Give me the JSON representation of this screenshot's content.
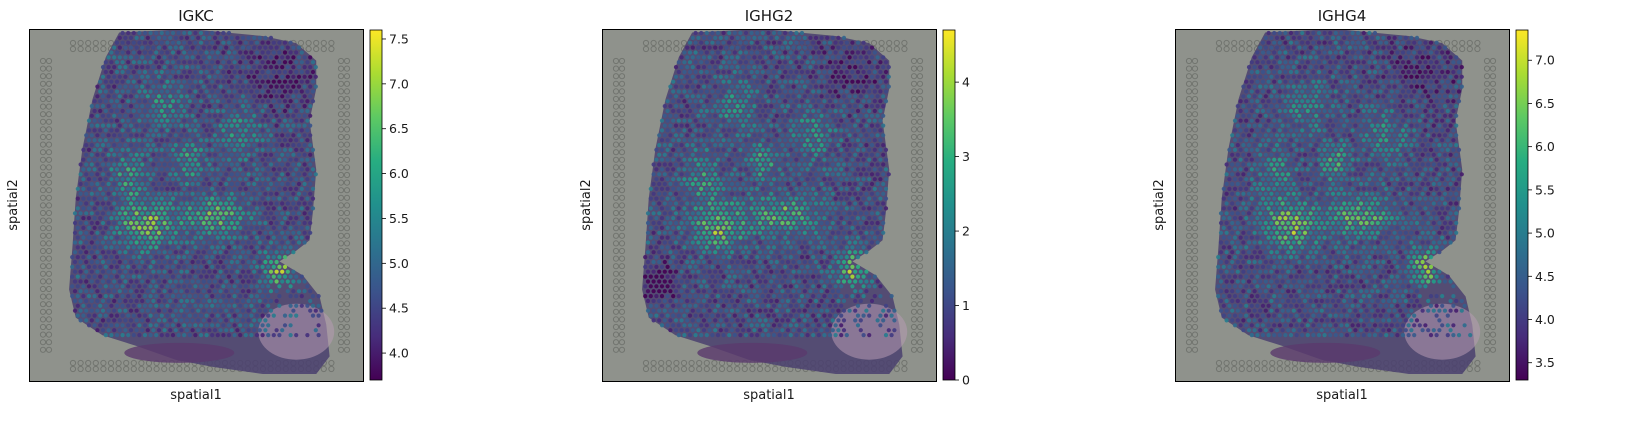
{
  "chart_data": [
    {
      "type": "heatmap",
      "title": "IGKC",
      "xlabel": "spatial1",
      "ylabel": "spatial2",
      "colormap": "viridis",
      "colorbar_range": [
        3.7,
        7.6
      ],
      "colorbar_ticks": [
        "4.0",
        "4.5",
        "5.0",
        "5.5",
        "6.0",
        "6.5",
        "7.0",
        "7.5"
      ],
      "colorbar_tick_values": [
        4.0,
        4.5,
        5.0,
        5.5,
        6.0,
        6.5,
        7.0,
        7.5
      ]
    },
    {
      "type": "heatmap",
      "title": "IGHG2",
      "xlabel": "spatial1",
      "ylabel": "spatial2",
      "colormap": "viridis",
      "colorbar_range": [
        0,
        4.7
      ],
      "colorbar_ticks": [
        "0",
        "1",
        "2",
        "3",
        "4"
      ],
      "colorbar_tick_values": [
        0,
        1,
        2,
        3,
        4
      ]
    },
    {
      "type": "heatmap",
      "title": "IGHG4",
      "xlabel": "spatial1",
      "ylabel": "spatial2",
      "colormap": "viridis",
      "colorbar_range": [
        3.3,
        7.35
      ],
      "colorbar_ticks": [
        "3.5",
        "4.0",
        "4.5",
        "5.0",
        "5.5",
        "6.0",
        "6.5",
        "7.0"
      ],
      "colorbar_tick_values": [
        3.5,
        4.0,
        4.5,
        5.0,
        5.5,
        6.0,
        6.5,
        7.0
      ]
    }
  ],
  "colors": {
    "background_tissue": "#8f928c",
    "viridis": [
      "#440154",
      "#3b528b",
      "#21908d",
      "#5dc963",
      "#fde725"
    ]
  }
}
